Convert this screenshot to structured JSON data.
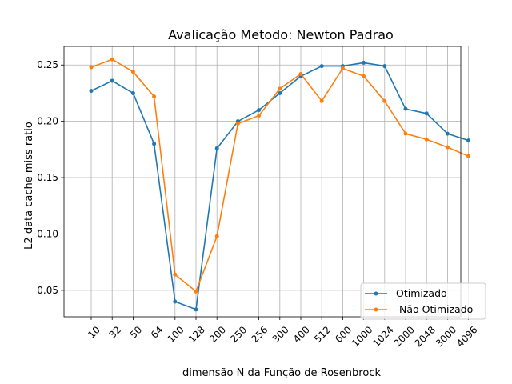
{
  "chart_data": {
    "type": "line",
    "title": "Avalicação Metodo:  Newton Padrao",
    "xlabel": "dimensão N da Função de Rosenbrock",
    "ylabel": "L2 data cache miss ratio",
    "categories": [
      "10",
      "32",
      "50",
      "64",
      "100",
      "128",
      "200",
      "250",
      "256",
      "300",
      "400",
      "512",
      "600",
      "1000",
      "1024",
      "2000",
      "2048",
      "3000",
      "4096"
    ],
    "yticks": [
      "0.05",
      "0.10",
      "0.15",
      "0.20",
      "0.25"
    ],
    "ylim": [
      0.0265,
      0.2665
    ],
    "grid": true,
    "legend_position": "lower right",
    "series": [
      {
        "name": "Otimizado",
        "color": "#1f77b4",
        "values": [
          0.227,
          0.236,
          0.225,
          0.18,
          0.04,
          0.033,
          0.176,
          0.2,
          0.21,
          0.225,
          0.24,
          0.249,
          0.249,
          0.252,
          0.249,
          0.211,
          0.207,
          0.189,
          0.183
        ]
      },
      {
        "name": " Não Otimizado",
        "color": "#ff7f0e",
        "values": [
          0.248,
          0.255,
          0.244,
          0.222,
          0.064,
          0.049,
          0.098,
          0.198,
          0.205,
          0.229,
          0.242,
          0.218,
          0.247,
          0.24,
          0.218,
          0.189,
          0.184,
          0.177,
          0.169
        ]
      }
    ]
  }
}
